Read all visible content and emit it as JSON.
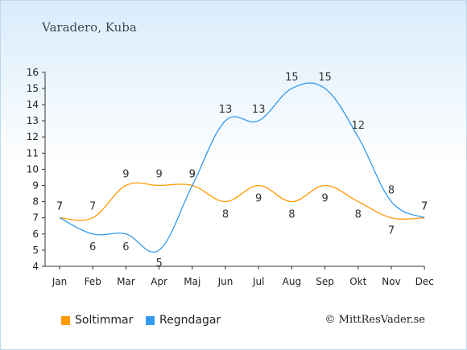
{
  "title": "Varadero, Kuba",
  "credit": "© MittResVader.se",
  "chart_data": {
    "type": "line",
    "categories": [
      "Jan",
      "Feb",
      "Mar",
      "Apr",
      "Maj",
      "Jun",
      "Jul",
      "Aug",
      "Sep",
      "Okt",
      "Nov",
      "Dec"
    ],
    "yticks": [
      4,
      5,
      6,
      7,
      8,
      9,
      10,
      11,
      12,
      13,
      14,
      15,
      16
    ],
    "ylim": [
      4,
      16
    ],
    "grid": false,
    "legend_position": "bottom-left",
    "series": [
      {
        "name": "Soltimmar",
        "color": "#ff9900",
        "values": [
          7,
          7,
          9,
          9,
          9,
          8,
          9,
          8,
          9,
          8,
          7,
          7
        ]
      },
      {
        "name": "Regndagar",
        "color": "#3399ee",
        "values": [
          7,
          6,
          6,
          5,
          9,
          13,
          13,
          15,
          15,
          12,
          8,
          7
        ]
      }
    ]
  }
}
